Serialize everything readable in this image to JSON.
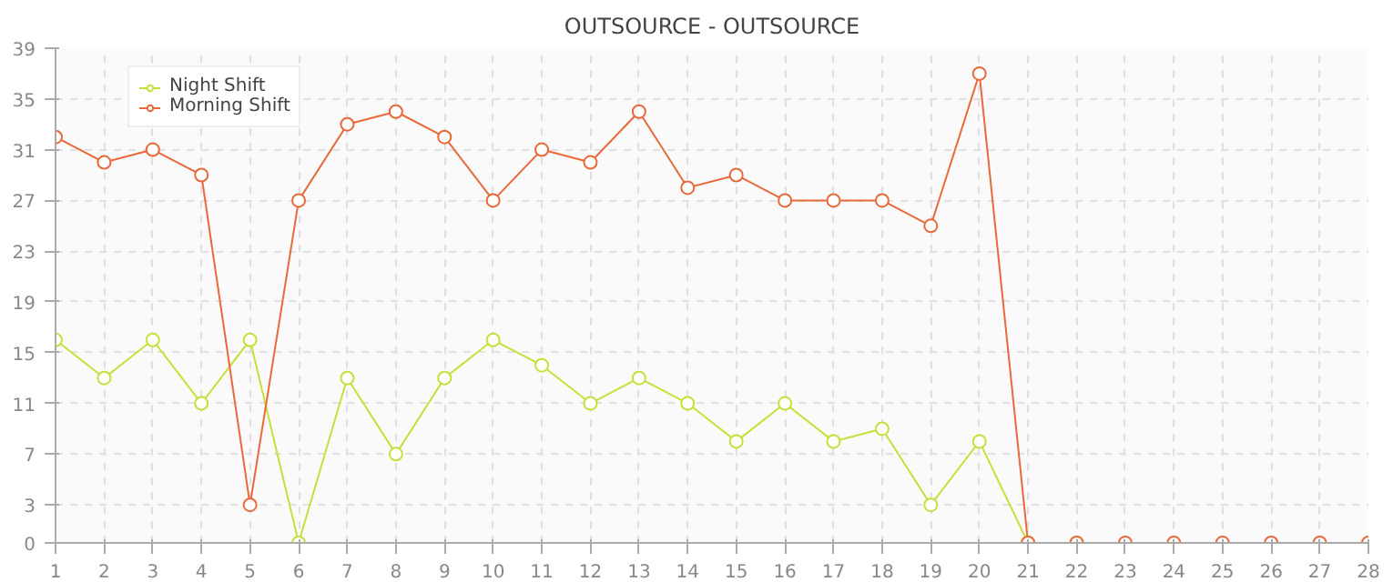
{
  "chart_data": {
    "type": "line",
    "title": "OUTSOURCE - OUTSOURCE",
    "x": [
      1,
      2,
      3,
      4,
      5,
      6,
      7,
      8,
      9,
      10,
      11,
      12,
      13,
      14,
      15,
      16,
      17,
      18,
      19,
      20,
      21,
      22,
      23,
      24,
      25,
      26,
      27,
      28
    ],
    "series": [
      {
        "name": "Night Shift",
        "color": "#c5e03a",
        "values": [
          16,
          13,
          16,
          11,
          16,
          0,
          13,
          7,
          13,
          16,
          14,
          11,
          13,
          11,
          8,
          11,
          8,
          9,
          3,
          8,
          0,
          0,
          null,
          null,
          null,
          null,
          null,
          null
        ]
      },
      {
        "name": "Morning Shift",
        "color": "#e8693a",
        "values": [
          32,
          30,
          31,
          29,
          3,
          27,
          33,
          34,
          32,
          27,
          31,
          30,
          34,
          28,
          29,
          27,
          27,
          27,
          25,
          37,
          0,
          0,
          0,
          0,
          0,
          0,
          0,
          0
        ]
      }
    ],
    "xlim": [
      1,
      28
    ],
    "xticks": [
      1,
      2,
      3,
      4,
      5,
      6,
      7,
      8,
      9,
      10,
      11,
      12,
      13,
      14,
      15,
      16,
      17,
      18,
      19,
      20,
      21,
      22,
      23,
      24,
      25,
      26,
      27,
      28
    ],
    "ylim": [
      0,
      39
    ],
    "yticks": [
      0,
      3,
      7,
      11,
      15,
      19,
      23,
      27,
      31,
      35,
      39
    ],
    "grid": true,
    "legend": "top left",
    "marker": "circle",
    "line_style": "solid"
  }
}
